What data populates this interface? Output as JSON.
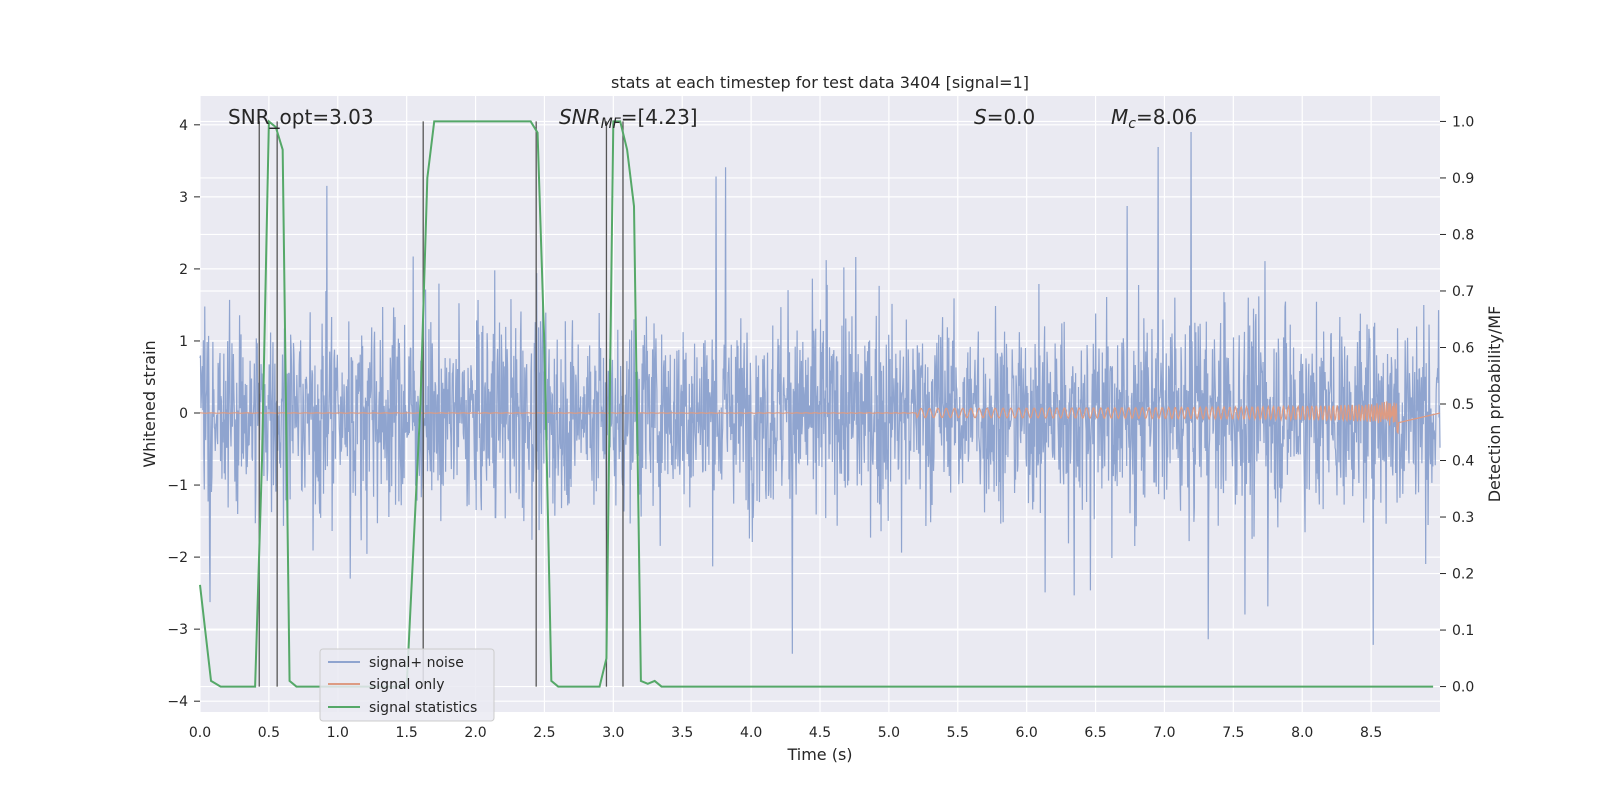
{
  "chart_data": {
    "type": "line",
    "title": "stats at each timestep for test data 3404 [signal=1]",
    "xlabel": "Time (s)",
    "ylabel_left": "Whitened strain",
    "ylabel_right": "Detection probability/MF",
    "xlim": [
      0,
      9.0
    ],
    "ylim_left": [
      -4.15,
      4.4
    ],
    "ylim_right": [
      -0.045,
      1.045
    ],
    "x_ticks": [
      0.0,
      0.5,
      1.0,
      1.5,
      2.0,
      2.5,
      3.0,
      3.5,
      4.0,
      4.5,
      5.0,
      5.5,
      6.0,
      6.5,
      7.0,
      7.5,
      8.0,
      8.5
    ],
    "x_tick_labels": [
      "0.0",
      "0.5",
      "1.0",
      "1.5",
      "2.0",
      "2.5",
      "3.0",
      "3.5",
      "4.0",
      "4.5",
      "5.0",
      "5.5",
      "6.0",
      "6.5",
      "7.0",
      "7.5",
      "8.0",
      "8.5"
    ],
    "y_ticks_left": [
      4,
      3,
      2,
      1,
      0,
      -1,
      -2,
      -3,
      -4
    ],
    "y_tick_labels_left": [
      "4",
      "3",
      "2",
      "1",
      "0",
      "−1",
      "−2",
      "−3",
      "−4"
    ],
    "y_ticks_right": [
      1.0,
      0.9,
      0.8,
      0.7,
      0.6,
      0.5,
      0.4,
      0.3,
      0.2,
      0.1,
      0.0
    ],
    "y_tick_labels_right": [
      "1.0",
      "0.9",
      "0.8",
      "0.7",
      "0.6",
      "0.5",
      "0.4",
      "0.3",
      "0.2",
      "0.1",
      "0.0"
    ],
    "grid": true,
    "legend_placement": "lower-left",
    "annotations": {
      "snr_opt": "SNR_opt=3.03",
      "snr_mf_sym": "SNR",
      "snr_mf_sub": "MF",
      "snr_mf_val": "=[4.23]",
      "s_sym": "S",
      "s_val": "=0.0",
      "mc_sym": "M",
      "mc_sub": "c",
      "mc_val": "=8.06"
    },
    "series": [
      {
        "name": "signal+ noise",
        "color": "#8fa4cf",
        "description_value": "noise band approx ±1.5 typical, peaks to ±4",
        "typical_amplitude": 1.5,
        "peak_amplitude": 3.9
      },
      {
        "name": "signal only",
        "color": "#dd9b83",
        "chirp_end": 8.7,
        "chirp_peak_amplitude": 0.35
      },
      {
        "name": "signal statistics",
        "color": "#55a868",
        "x": [
          0.0,
          0.08,
          0.15,
          0.3,
          0.4,
          0.45,
          0.5,
          0.55,
          0.6,
          0.65,
          0.7,
          0.9,
          1.5,
          1.6,
          1.65,
          1.7,
          2.0,
          2.4,
          2.45,
          2.5,
          2.55,
          2.6,
          2.9,
          2.95,
          3.0,
          3.05,
          3.1,
          3.15,
          3.2,
          3.25,
          3.3,
          3.35,
          3.4,
          3.5,
          8.95
        ],
        "y": [
          0.18,
          0.01,
          0.0,
          0.0,
          0.0,
          0.4,
          1.0,
          0.99,
          0.95,
          0.01,
          0.0,
          0.0,
          0.0,
          0.5,
          0.9,
          1.0,
          1.0,
          1.0,
          0.98,
          0.6,
          0.01,
          0.0,
          0.0,
          0.05,
          1.0,
          1.0,
          0.95,
          0.85,
          0.01,
          0.005,
          0.01,
          0.0,
          0.0,
          0.0,
          0.0
        ]
      }
    ],
    "vertical_lines_x": [
      0.43,
      0.56,
      1.62,
      2.44,
      2.95,
      3.07
    ],
    "vertical_line_color": "#555555"
  }
}
